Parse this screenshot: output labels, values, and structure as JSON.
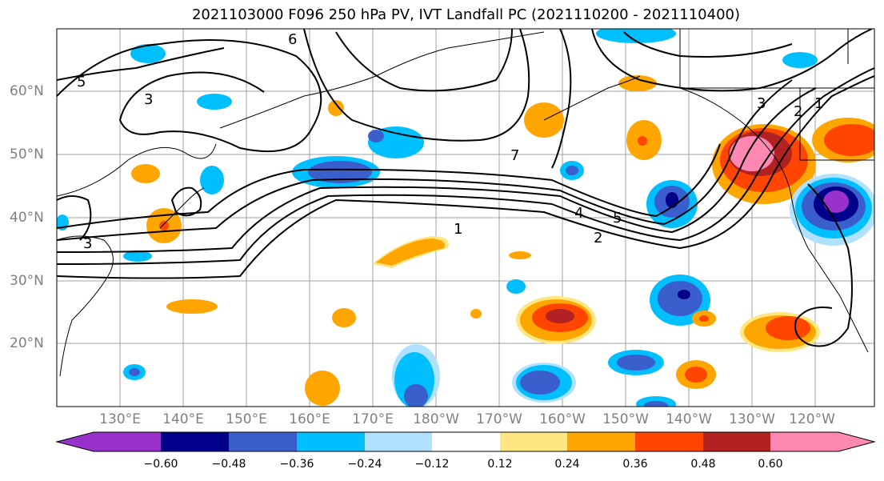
{
  "title": "2021103000 F096 250 hPa PV, IVT Landfall PC (2021110200 - 2021110400)",
  "lat_labels": [
    "60°N",
    "50°N",
    "40°N",
    "30°N",
    "20°N"
  ],
  "lon_labels": [
    "130°E",
    "140°E",
    "150°E",
    "160°E",
    "170°E",
    "180°W",
    "170°W",
    "160°W",
    "150°W",
    "140°W",
    "130°W",
    "120°W"
  ],
  "contour_labels": [
    "1",
    "2",
    "3",
    "4",
    "5",
    "6",
    "7"
  ],
  "colorbar": {
    "ticks": [
      "−0.60",
      "−0.48",
      "−0.36",
      "−0.24",
      "−0.12",
      "0.12",
      "0.24",
      "0.36",
      "0.48",
      "0.60"
    ],
    "colors": [
      "#9932cc",
      "#00008b",
      "#3a5fcd",
      "#00bfff",
      "#b0e2ff",
      "#ffffff",
      "#ffe680",
      "#ffa500",
      "#ff4500",
      "#b22222",
      "#ff88b3"
    ]
  },
  "colors": {
    "purple": "#9932cc",
    "navy": "#00008b",
    "blue": "#3a5fcd",
    "deepsky": "#00bfff",
    "lightblue": "#b0e2ff",
    "yellow": "#ffe680",
    "orange": "#ffa500",
    "redorange": "#ff4500",
    "darkred": "#b22222",
    "pink": "#ff88b3"
  }
}
